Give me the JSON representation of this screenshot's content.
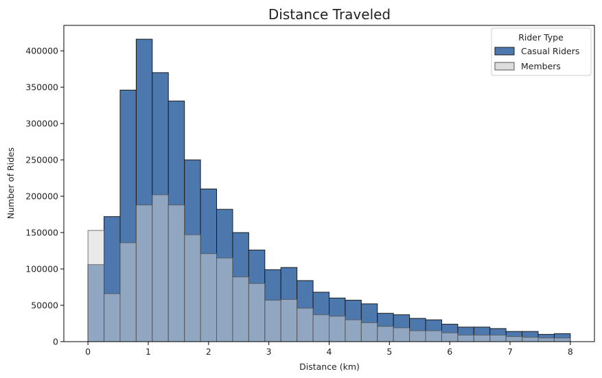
{
  "chart_data": {
    "type": "bar",
    "title": "Distance Traveled",
    "xlabel": "Distance (km)",
    "ylabel": "Number of Rides",
    "xlim": [
      -0.4,
      8.4
    ],
    "ylim": [
      0,
      435000
    ],
    "xticks": [
      0,
      1,
      2,
      3,
      4,
      5,
      6,
      7,
      8
    ],
    "yticks": [
      0,
      50000,
      100000,
      150000,
      200000,
      250000,
      300000,
      350000,
      400000
    ],
    "grid": false,
    "bin_width": 0.2667,
    "bin_starts": [
      0,
      0.2667,
      0.5333,
      0.8,
      1.0667,
      1.3333,
      1.6,
      1.8667,
      2.1333,
      2.4,
      2.6667,
      2.9333,
      3.2,
      3.4667,
      3.7333,
      4.0,
      4.2667,
      4.5333,
      4.8,
      5.0667,
      5.3333,
      5.6,
      5.8667,
      6.1333,
      6.4,
      6.6667,
      6.9333,
      7.2,
      7.4667,
      7.7333
    ],
    "legend": {
      "title": "Rider Type",
      "position": "top-right"
    },
    "series": [
      {
        "name": "Casual Riders",
        "color": "#4c78ae",
        "values": [
          106000,
          172000,
          346000,
          416000,
          370000,
          331000,
          250000,
          210000,
          182000,
          150000,
          126000,
          99000,
          102000,
          84000,
          68000,
          60000,
          57000,
          52000,
          39000,
          37000,
          32000,
          30000,
          24000,
          20000,
          20000,
          18000,
          14000,
          14000,
          10000,
          11000
        ]
      },
      {
        "name": "Members",
        "color": "#d3d3d3",
        "values": [
          153000,
          66000,
          136000,
          188000,
          202000,
          188000,
          147000,
          121000,
          115000,
          89000,
          80000,
          57000,
          58000,
          46000,
          37000,
          35000,
          30000,
          26000,
          21000,
          19000,
          15000,
          15000,
          12000,
          9000,
          9000,
          9000,
          7000,
          6000,
          5000,
          5000
        ]
      }
    ]
  }
}
